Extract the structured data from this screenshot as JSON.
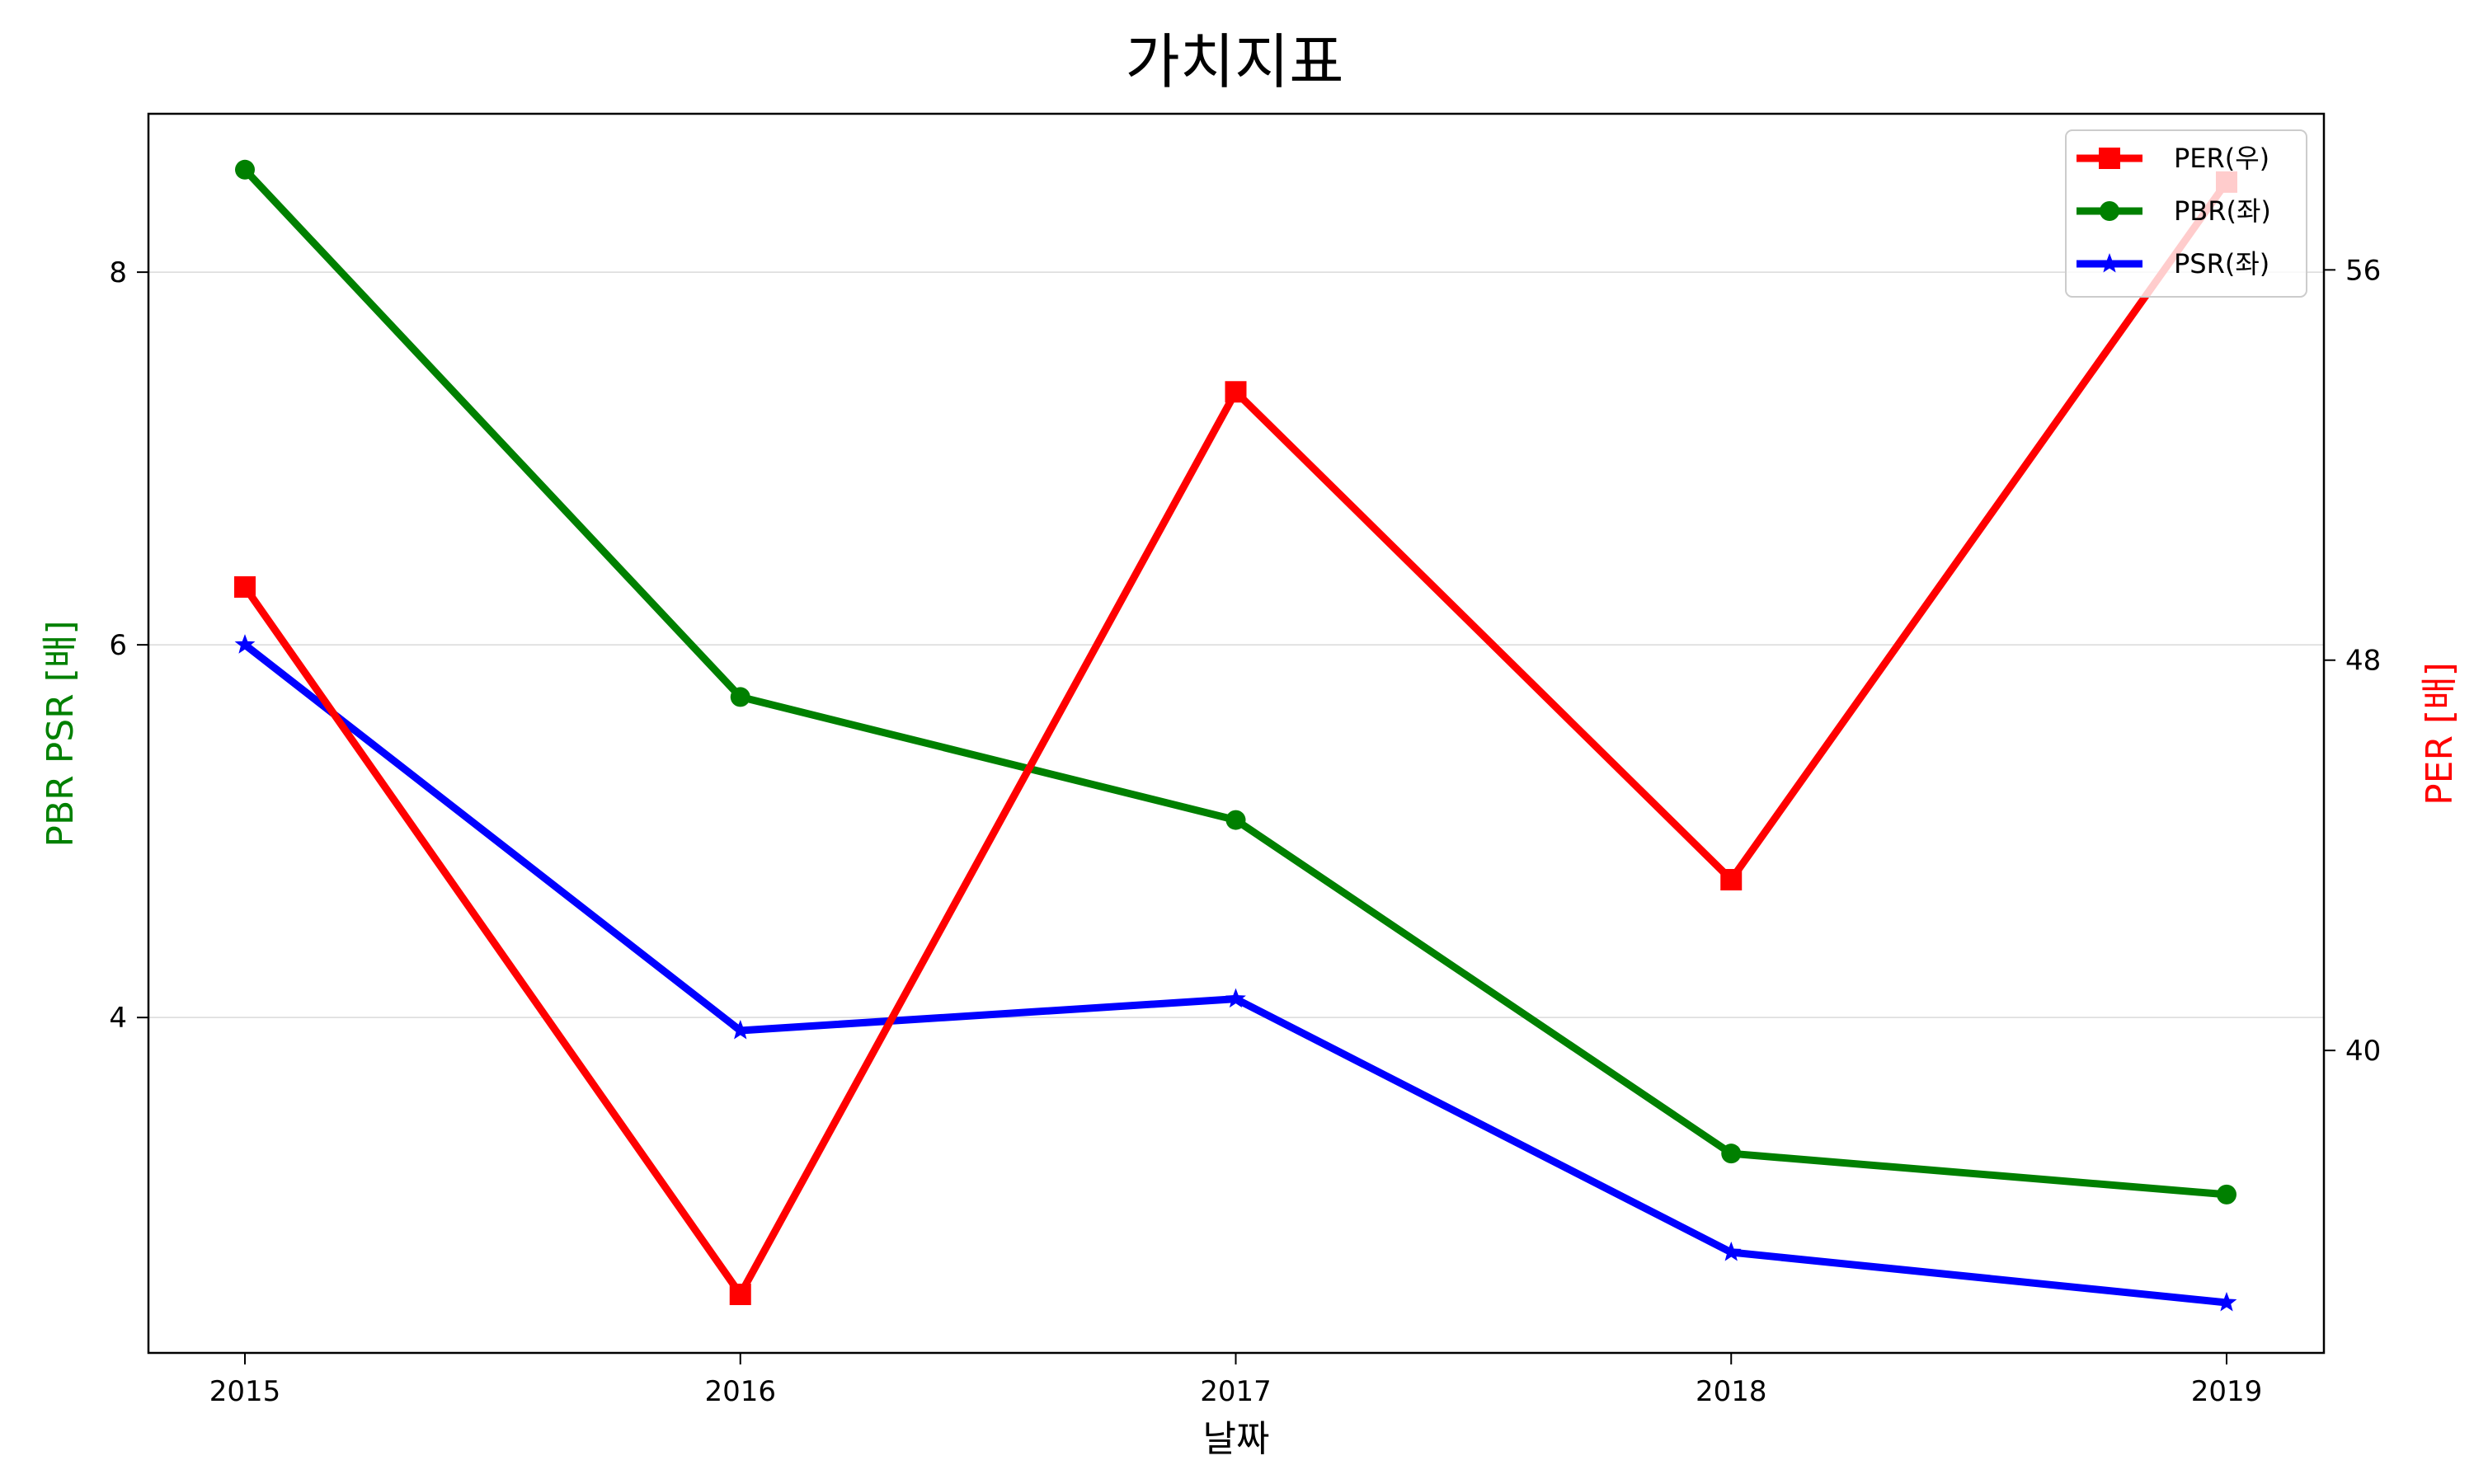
{
  "chart_data": {
    "type": "line",
    "title": "가치지표",
    "xlabel": "날짜",
    "ylabel_left": "PBR PSR [배]",
    "ylabel_right": "PER [배]",
    "categories": [
      "2015",
      "2016",
      "2017",
      "2018",
      "2019"
    ],
    "left_axis": {
      "ylim": [
        2.2,
        8.85
      ],
      "ticks": [
        4,
        6,
        8
      ],
      "tick_labels": [
        "4",
        "6",
        "8"
      ],
      "grid": true
    },
    "right_axis": {
      "ylim": [
        33.8,
        59.2
      ],
      "ticks": [
        40,
        48,
        56
      ],
      "tick_labels": [
        "40",
        "48",
        "56"
      ]
    },
    "series": [
      {
        "name": "PER(우)",
        "axis": "right",
        "color": "#ff0000",
        "marker": "square",
        "values": [
          49.5,
          35.0,
          53.5,
          43.5,
          57.8
        ]
      },
      {
        "name": "PBR(좌)",
        "axis": "left",
        "color": "#008000",
        "marker": "circle",
        "values": [
          8.55,
          5.72,
          5.06,
          3.27,
          3.05
        ]
      },
      {
        "name": "PSR(좌)",
        "axis": "left",
        "color": "#0000ff",
        "marker": "star",
        "values": [
          6.0,
          3.93,
          4.1,
          2.74,
          2.47
        ]
      }
    ],
    "legend": {
      "position": "top-right"
    },
    "axis_colors": {
      "left_title": "#008000",
      "right_title": "#ff0000"
    }
  }
}
